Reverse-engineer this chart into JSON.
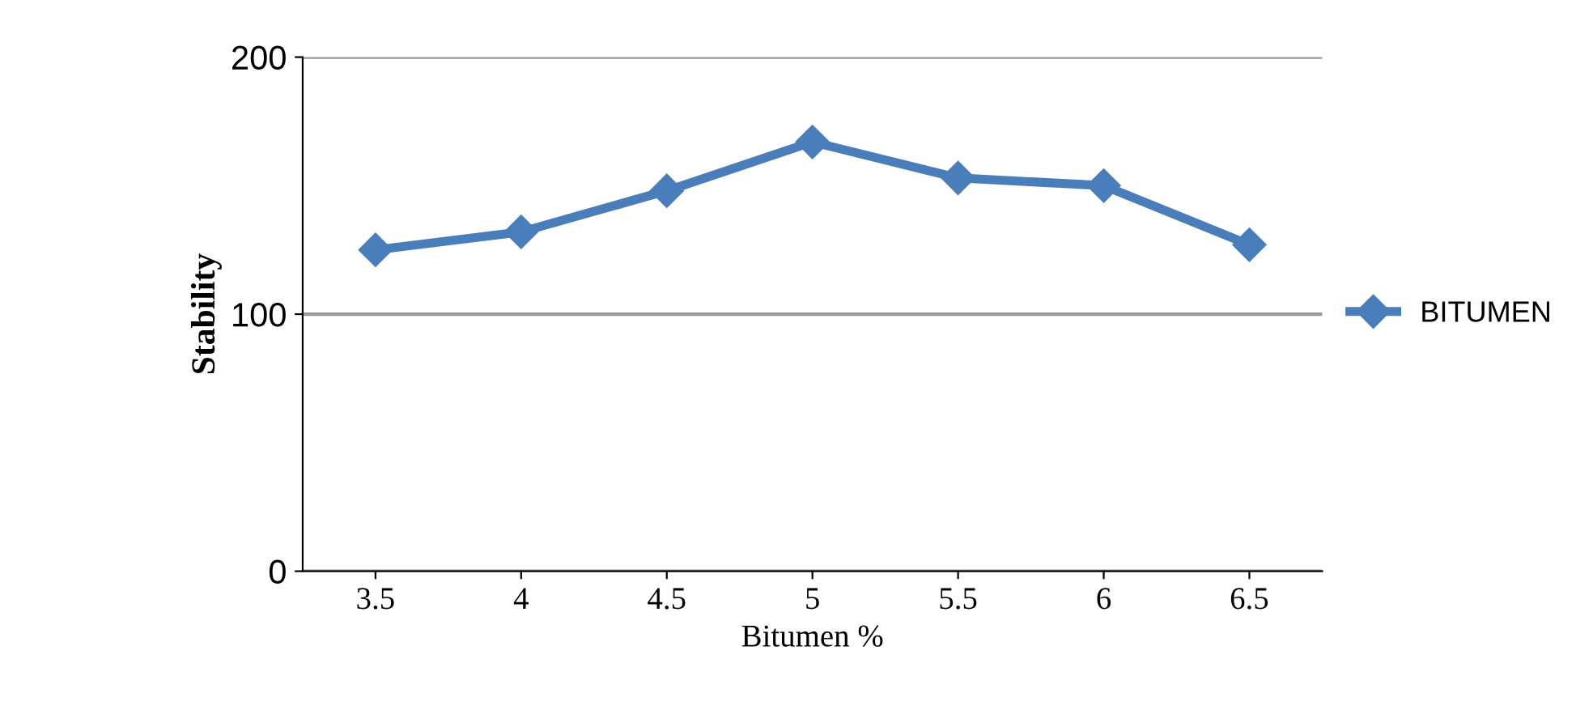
{
  "chart_data": {
    "type": "line",
    "xlabel": "Bitumen %",
    "ylabel": "Stability",
    "categories": [
      "3.5",
      "4",
      "4.5",
      "5",
      "5.5",
      "6",
      "6.5"
    ],
    "series": [
      {
        "name": "BITUMEN",
        "color": "#4a7ebb",
        "values": [
          125,
          132,
          148,
          167,
          153,
          150,
          127
        ]
      }
    ],
    "ylim": [
      0,
      200
    ],
    "yticks": [
      0,
      100,
      200
    ],
    "grid": "y",
    "legend": "right",
    "marker": "diamond",
    "line_style": "solid"
  }
}
